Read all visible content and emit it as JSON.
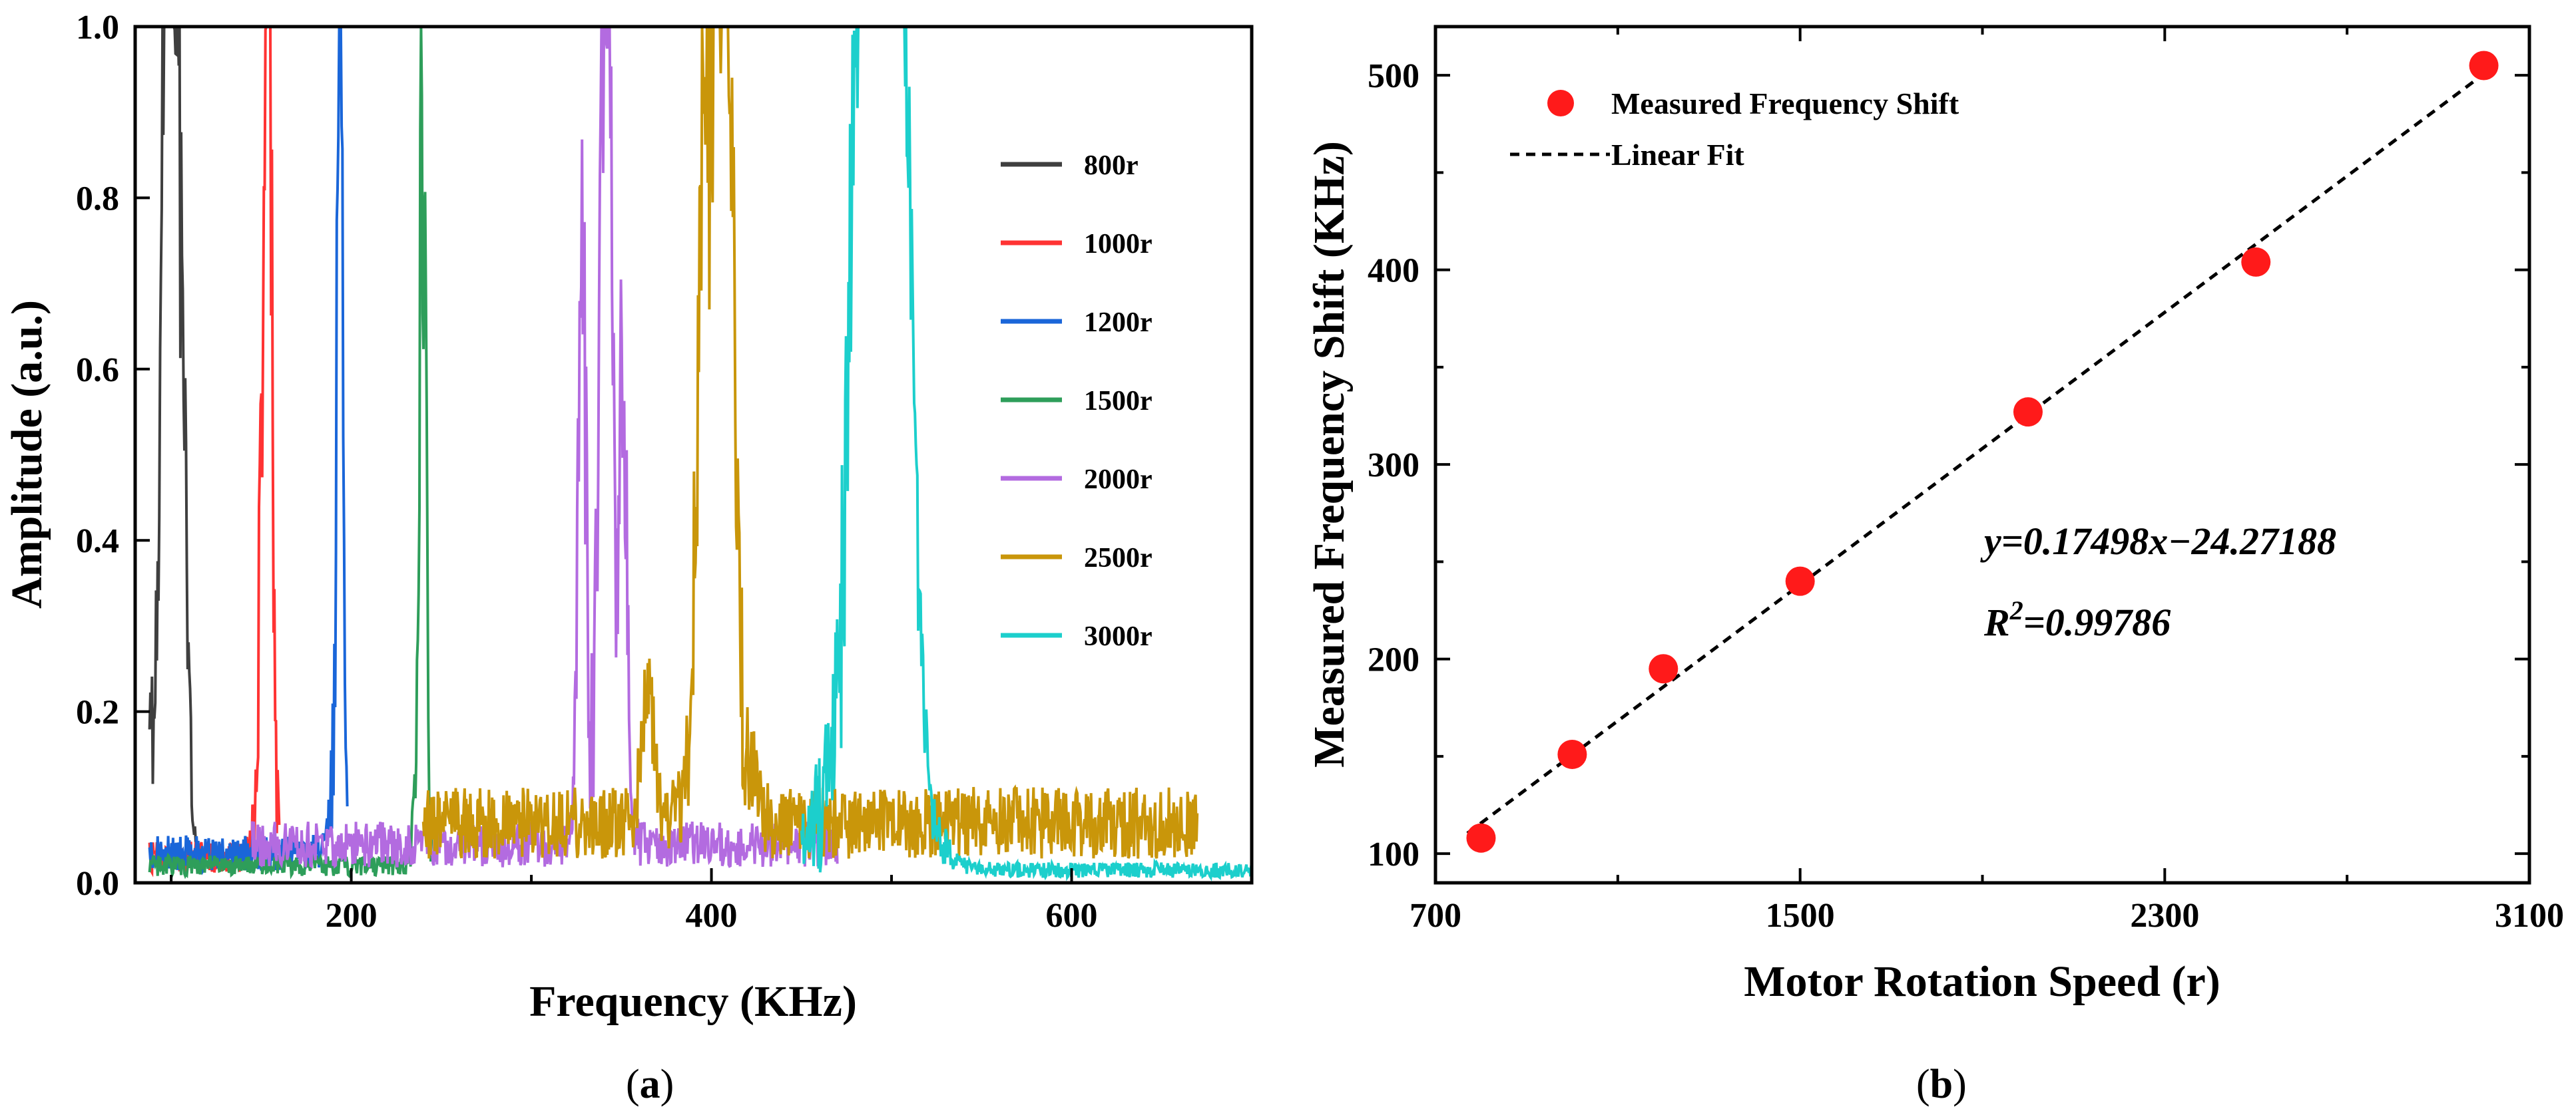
{
  "colors": {
    "800r": "#3f3f3f",
    "1000r": "#ff3333",
    "1200r": "#1a66d9",
    "1500r": "#2e9e5a",
    "2000r": "#b36be0",
    "2500r": "#c9960a",
    "3000r": "#1ccfcc",
    "marker": "#ff1a1a",
    "fit": "#000000"
  },
  "chart_data": [
    {
      "panel": "(a)",
      "panel_letter": "a",
      "type": "line",
      "xlabel": "Frequency (KHz)",
      "ylabel": "Amplitude (a.u.)",
      "xlim": [
        80,
        700
      ],
      "ylim": [
        0.0,
        1.0
      ],
      "xticks": [
        200,
        400,
        600
      ],
      "xtick_labels": [
        "200",
        "400",
        "600"
      ],
      "yticks": [
        0.0,
        0.2,
        0.4,
        0.6,
        0.8,
        1.0
      ],
      "ytick_labels": [
        "0.0",
        "0.2",
        "0.4",
        "0.6",
        "0.8",
        "1.0"
      ],
      "legend_position": "right",
      "series": [
        {
          "name": "800r",
          "start": 88,
          "end": 115,
          "peak_x": 97,
          "peaks": [
            [
              97,
              1.0
            ],
            [
              100,
              0.81
            ],
            [
              105,
              0.73
            ]
          ],
          "width": 4,
          "baseline": 0.025
        },
        {
          "name": "1000r",
          "start": 88,
          "end": 160,
          "peak_x": 153,
          "peaks": [
            [
              153,
              1.0
            ],
            [
              155,
              0.95
            ],
            [
              150,
              0.39
            ]
          ],
          "width": 1.8,
          "baseline": 0.03
        },
        {
          "name": "1200r",
          "start": 88,
          "end": 198,
          "peak_x": 193,
          "peaks": [
            [
              193,
              1.0
            ],
            [
              195,
              0.55
            ]
          ],
          "width": 1.4,
          "baseline": 0.035
        },
        {
          "name": "1500r",
          "start": 88,
          "end": 245,
          "peak_x": 239,
          "peaks": [
            [
              239,
              1.0
            ],
            [
              241,
              0.6
            ]
          ],
          "width": 1.3,
          "baseline": 0.02
        },
        {
          "name": "2000r",
          "start": 145,
          "end": 470,
          "peak_x": 340,
          "peaks": [
            [
              340,
              1.0
            ],
            [
              328,
              0.87
            ],
            [
              343,
              0.76
            ],
            [
              351,
              0.65
            ]
          ],
          "width": 3,
          "baseline": 0.045
        },
        {
          "name": "2500r",
          "start": 240,
          "end": 670,
          "peak_x": 404,
          "peaks": [
            [
              404,
              1.0
            ],
            [
              396,
              0.85
            ],
            [
              410,
              0.75
            ],
            [
              365,
              0.2
            ]
          ],
          "width": 5,
          "baseline": 0.07
        },
        {
          "name": "3000r",
          "start": 450,
          "end": 700,
          "peak_x": 488,
          "peaks": [
            [
              488,
              1.0
            ],
            [
              496,
              0.97
            ],
            [
              500,
              0.88
            ],
            [
              482,
              0.55
            ],
            [
              508,
              0.55
            ]
          ],
          "width": 9,
          "baseline": 0.015
        }
      ]
    },
    {
      "panel": "(b)",
      "panel_letter": "b",
      "type": "scatter",
      "xlabel": "Motor Rotation Speed (r)",
      "ylabel": "Measured Frequency Shift (KHz)",
      "xlim": [
        700,
        3100
      ],
      "ylim": [
        85,
        525
      ],
      "xticks": [
        700,
        1500,
        2300,
        3100
      ],
      "xtick_labels": [
        "700",
        "1500",
        "2300",
        "3100"
      ],
      "yticks": [
        100,
        200,
        300,
        400,
        500
      ],
      "ytick_labels": [
        "100",
        "200",
        "300",
        "400",
        "500"
      ],
      "legend_position": "top-left",
      "legend": [
        "Measured Frequency Shift",
        "Linear Fit"
      ],
      "points": {
        "x": [
          800,
          1000,
          1200,
          1500,
          2000,
          2500,
          3000
        ],
        "y": [
          108,
          151,
          195,
          240,
          327,
          404,
          505
        ]
      },
      "fit": {
        "slope": 0.17498,
        "intercept": -24.27188,
        "x_range": [
          800,
          3000
        ]
      },
      "equation": "y=0.17498x−24.27188",
      "r2_prefix": "R",
      "r2_sup": "2",
      "r2_value": "=0.99786"
    }
  ]
}
